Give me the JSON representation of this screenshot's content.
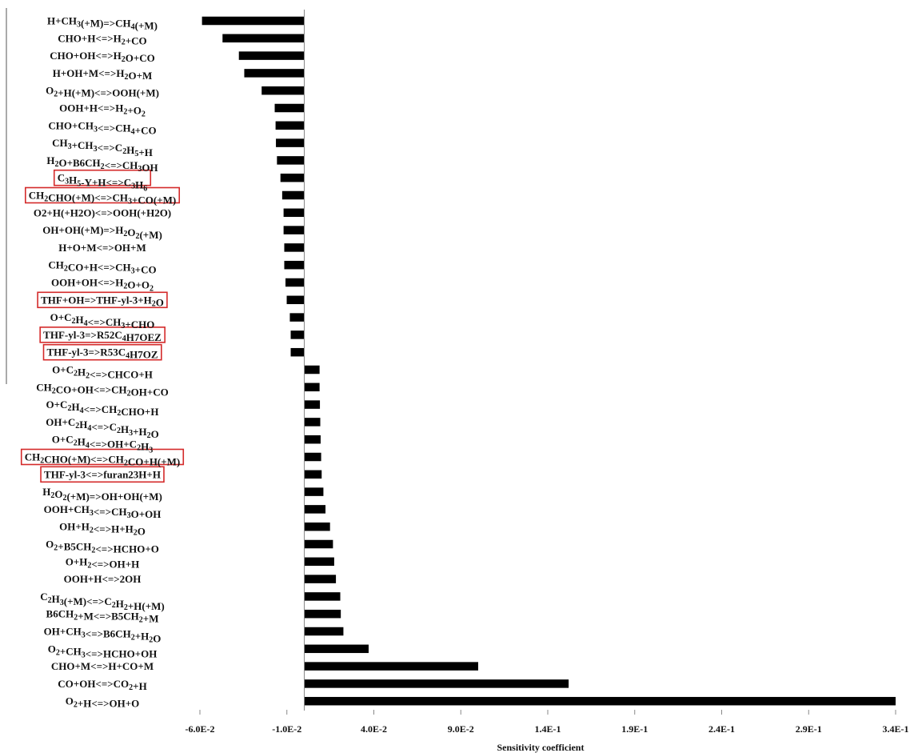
{
  "chart_data": {
    "type": "bar",
    "orientation": "horizontal",
    "title": "",
    "xlabel": "Sensitivity coefficient",
    "ylabel": "",
    "xlim": [
      -0.06,
      0.34
    ],
    "grid": false,
    "legend": "none",
    "colors": {
      "bar": "#000000",
      "highlight": "#d42a2a",
      "axis": "#888888"
    },
    "x_tick_values": [
      -0.06,
      -0.01,
      0.04,
      0.09,
      0.14,
      0.19,
      0.24,
      0.29,
      0.34
    ],
    "x_tick_labels": [
      "-6.0E-2",
      "-1.0E-2",
      "4.0E-2",
      "9.0E-2",
      "1.4E-1",
      "1.9E-1",
      "2.4E-1",
      "2.9E-1",
      "3.4E-1"
    ],
    "categories": [
      {
        "label": "H+CH<sub>3</sub>(+M)=>CH<sub>4</sub>(+M)",
        "highlight": false
      },
      {
        "label": "CHO+H<=>H<sub>2</sub>+CO",
        "highlight": false
      },
      {
        "label": "CHO+OH<=>H<sub>2</sub>O+CO",
        "highlight": false
      },
      {
        "label": "H+OH+M<=>H<sub>2</sub>O+M",
        "highlight": false
      },
      {
        "label": "O<sub>2</sub>+H(+M)<=>OOH(+M)",
        "highlight": false
      },
      {
        "label": "OOH+H<=>H<sub>2</sub>+O<sub>2</sub>",
        "highlight": false
      },
      {
        "label": "CHO+CH<sub>3</sub><=>CH<sub>4</sub>+CO",
        "highlight": false
      },
      {
        "label": "CH<sub>3</sub>+CH<sub>3</sub><=>C<sub>2</sub>H<sub>5</sub>+H",
        "highlight": false
      },
      {
        "label": "H<sub>2</sub>O+B6CH<sub>2</sub><=>CH<sub>3</sub>OH",
        "highlight": false
      },
      {
        "label": "C<sub>3</sub>H<sub>5</sub>-Y+H<=>C<sub>3</sub>H<sub>6</sub>",
        "highlight": true
      },
      {
        "label": "CH<sub>2</sub>CHO(+M)<=>CH<sub>3</sub>+CO(+M)",
        "highlight": true
      },
      {
        "label": "O2+H(+H2O)<=>OOH(+H2O)",
        "highlight": false
      },
      {
        "label": "OH+OH(+M)=>H<sub>2</sub>O<sub>2</sub>(+M)",
        "highlight": false
      },
      {
        "label": "H+O+M<=>OH+M",
        "highlight": false
      },
      {
        "label": "CH<sub>2</sub>CO+H<=>CH<sub>3</sub>+CO",
        "highlight": false
      },
      {
        "label": "OOH+OH<=>H<sub>2</sub>O+O<sub>2</sub>",
        "highlight": false
      },
      {
        "label": "THF+OH=>THF-yl-3+H<sub>2</sub>O",
        "highlight": true
      },
      {
        "label": "O+C<sub>2</sub>H<sub>4</sub><=>CH<sub>3</sub>+CHO",
        "highlight": false
      },
      {
        "label": "THF-yl-3=>R52C<sub>4</sub>H7OEZ",
        "highlight": true
      },
      {
        "label": "THF-yl-3=>R53C<sub>4</sub>H7OZ",
        "highlight": true
      },
      {
        "label": "O+C<sub>2</sub>H<sub>2</sub><=>CHCO+H",
        "highlight": false
      },
      {
        "label": "CH<sub>2</sub>CO+OH<=>CH<sub>2</sub>OH+CO",
        "highlight": false
      },
      {
        "label": "O+C<sub>2</sub>H<sub>4</sub><=>CH<sub>2</sub>CHO+H",
        "highlight": false
      },
      {
        "label": "OH+C<sub>2</sub>H<sub>4</sub><=>C<sub>2</sub>H<sub>3</sub>+H<sub>2</sub>O",
        "highlight": false
      },
      {
        "label": "O+C<sub>2</sub>H<sub>4</sub><=>OH+C<sub>2</sub>H<sub>3</sub>",
        "highlight": false
      },
      {
        "label": "CH<sub>2</sub>CHO(+M)<=>CH<sub>2</sub>CO+H(+M)",
        "highlight": true
      },
      {
        "label": "THF-yl-3<=>furan23H+H",
        "highlight": true
      },
      {
        "label": "H<sub>2</sub>O<sub>2</sub>(+M)=>OH+OH(+M)",
        "highlight": false
      },
      {
        "label": "OOH+CH<sub>3</sub><=>CH<sub>3</sub>O+OH",
        "highlight": false
      },
      {
        "label": "OH+H<sub>2</sub><=>H+H<sub>2</sub>O",
        "highlight": false
      },
      {
        "label": "O<sub>2</sub>+B5CH<sub>2</sub><=>HCHO+O",
        "highlight": false
      },
      {
        "label": "O+H<sub>2</sub><=>OH+H",
        "highlight": false
      },
      {
        "label": "OOH+H<=>2OH",
        "highlight": false
      },
      {
        "label": "C<sub>2</sub>H<sub>3</sub>(+M)<=>C<sub>2</sub>H<sub>2</sub>+H(+M)",
        "highlight": false
      },
      {
        "label": "B6CH<sub>2</sub>+M<=>B5CH<sub>2</sub>+M",
        "highlight": false
      },
      {
        "label": "OH+CH<sub>3</sub><=>B6CH<sub>2</sub>+H<sub>2</sub>O",
        "highlight": false
      },
      {
        "label": "O<sub>2</sub>+CH<sub>3</sub><=>HCHO+OH",
        "highlight": false
      },
      {
        "label": "CHO+M<=>H+CO+M",
        "highlight": false
      },
      {
        "label": "CO+OH<=>CO<sub>2</sub>+H",
        "highlight": false
      },
      {
        "label": "O<sub>2</sub>+H<=>OH+O",
        "highlight": false
      }
    ],
    "values": [
      -0.0588,
      -0.047,
      -0.0376,
      -0.0345,
      -0.0245,
      -0.017,
      -0.0165,
      -0.0163,
      -0.0157,
      -0.0137,
      -0.0127,
      -0.0119,
      -0.0119,
      -0.0115,
      -0.0115,
      -0.0108,
      -0.0101,
      -0.0083,
      -0.0078,
      -0.0078,
      0.0088,
      0.0088,
      0.009,
      0.0092,
      0.0094,
      0.0097,
      0.01,
      0.011,
      0.0122,
      0.0148,
      0.0165,
      0.0172,
      0.0182,
      0.0207,
      0.021,
      0.0225,
      0.037,
      0.1,
      0.152,
      0.34
    ]
  }
}
